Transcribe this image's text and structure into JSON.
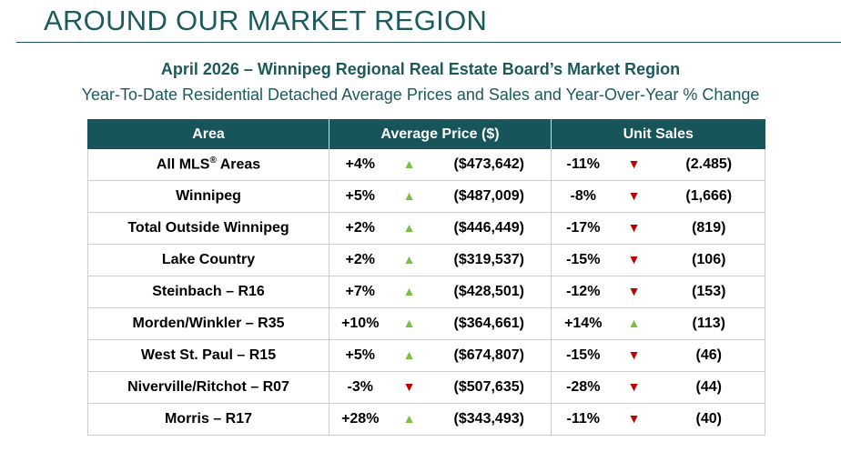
{
  "header": {
    "page_title": "AROUND OUR MARKET REGION",
    "report_title": "April 2026 – Winnipeg Regional Real Estate Board’s Market Region",
    "report_subtitle": "Year-To-Date Residential Detached Average Prices and Sales and Year-Over-Year % Change"
  },
  "table": {
    "columns": [
      "Area",
      "Average Price ($)",
      "Unit Sales"
    ],
    "rows": [
      {
        "area": "All MLS® Areas",
        "price_change": "+4%",
        "price_dir": "up",
        "price": "($473,642)",
        "sales_change": "-11%",
        "sales_dir": "down",
        "sales": "(2.485)"
      },
      {
        "area": "Winnipeg",
        "price_change": "+5%",
        "price_dir": "up",
        "price": "($487,009)",
        "sales_change": "-8%",
        "sales_dir": "down",
        "sales": "(1,666)"
      },
      {
        "area": "Total Outside Winnipeg",
        "price_change": "+2%",
        "price_dir": "up",
        "price": "($446,449)",
        "sales_change": "-17%",
        "sales_dir": "down",
        "sales": "(819)"
      },
      {
        "area": "Lake Country",
        "price_change": "+2%",
        "price_dir": "up",
        "price": "($319,537)",
        "sales_change": "-15%",
        "sales_dir": "down",
        "sales": "(106)"
      },
      {
        "area": "Steinbach – R16",
        "price_change": "+7%",
        "price_dir": "up",
        "price": "($428,501)",
        "sales_change": "-12%",
        "sales_dir": "down",
        "sales": "(153)"
      },
      {
        "area": "Morden/Winkler – R35",
        "price_change": "+10%",
        "price_dir": "up",
        "price": "($364,661)",
        "sales_change": "+14%",
        "sales_dir": "up",
        "sales": "(113)"
      },
      {
        "area": "West St. Paul – R15",
        "price_change": "+5%",
        "price_dir": "up",
        "price": "($674,807)",
        "sales_change": "-15%",
        "sales_dir": "down",
        "sales": "(46)"
      },
      {
        "area": "Niverville/Ritchot – R07",
        "price_change": "-3%",
        "price_dir": "down",
        "price": "($507,635)",
        "sales_change": "-28%",
        "sales_dir": "down",
        "sales": "(44)"
      },
      {
        "area": "Morris – R17",
        "price_change": "+28%",
        "price_dir": "up",
        "price": "($343,493)",
        "sales_change": "-11%",
        "sales_dir": "down",
        "sales": "(40)"
      }
    ]
  },
  "colors": {
    "brand_teal": "#17555a",
    "up_arrow": "#7ac143",
    "down_arrow": "#c00000"
  },
  "icons": {
    "up": "triangle-up-icon",
    "down": "triangle-down-icon"
  }
}
